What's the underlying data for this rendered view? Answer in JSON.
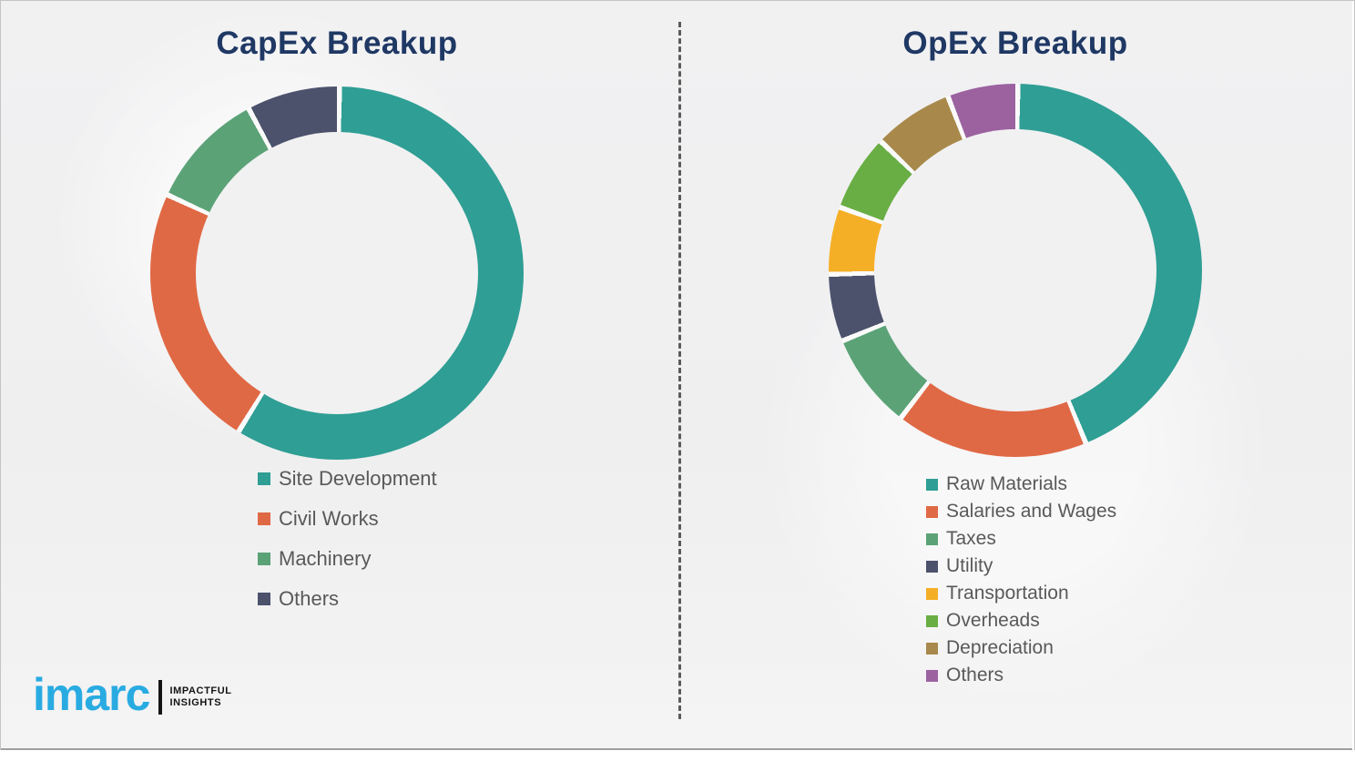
{
  "page": {
    "background_color": "#f1f1f2",
    "divider_style": "vertical-dashed",
    "divider_color": "#5b5b5b"
  },
  "chart_data": [
    {
      "type": "pie",
      "subtype": "donut",
      "title": "CapEx Breakup",
      "title_color": "#1f3864",
      "gap_color": "#fafafa",
      "legend_position": "below-left",
      "segments": [
        {
          "label": "Site Development",
          "color": "#2f9e94",
          "degrees": 211,
          "percent_estimate": 58.6
        },
        {
          "label": "Civil Works",
          "color": "#e06945",
          "degrees": 83,
          "percent_estimate": 23.1
        },
        {
          "label": "Machinery",
          "color": "#5ca277",
          "degrees": 37,
          "percent_estimate": 10.3
        },
        {
          "label": "Others",
          "color": "#4c526c",
          "degrees": 29,
          "percent_estimate": 8.0
        }
      ]
    },
    {
      "type": "pie",
      "subtype": "donut",
      "title": "OpEx Breakup",
      "title_color": "#1f3864",
      "gap_color": "#fafafa",
      "legend_position": "below-left",
      "segments": [
        {
          "label": "Raw Materials",
          "color": "#2f9e94",
          "degrees": 157,
          "percent_estimate": 43.6
        },
        {
          "label": "Salaries and Wages",
          "color": "#e06945",
          "degrees": 60,
          "percent_estimate": 16.7
        },
        {
          "label": "Taxes",
          "color": "#5ba377",
          "degrees": 30,
          "percent_estimate": 8.3
        },
        {
          "label": "Utility",
          "color": "#4c526c",
          "degrees": 21,
          "percent_estimate": 5.8
        },
        {
          "label": "Transportation",
          "color": "#f5af26",
          "degrees": 21,
          "percent_estimate": 5.8
        },
        {
          "label": "Overheads",
          "color": "#69ae44",
          "degrees": 24,
          "percent_estimate": 6.7
        },
        {
          "label": "Depreciation",
          "color": "#a8894b",
          "degrees": 25,
          "percent_estimate": 6.9
        },
        {
          "label": "Others",
          "color": "#9c62a0",
          "degrees": 22,
          "percent_estimate": 6.2
        }
      ]
    }
  ],
  "logo": {
    "brand": "imarc",
    "brand_color": "#29abe2",
    "tagline_line1": "IMPACTFUL",
    "tagline_line2": "INSIGHTS"
  }
}
